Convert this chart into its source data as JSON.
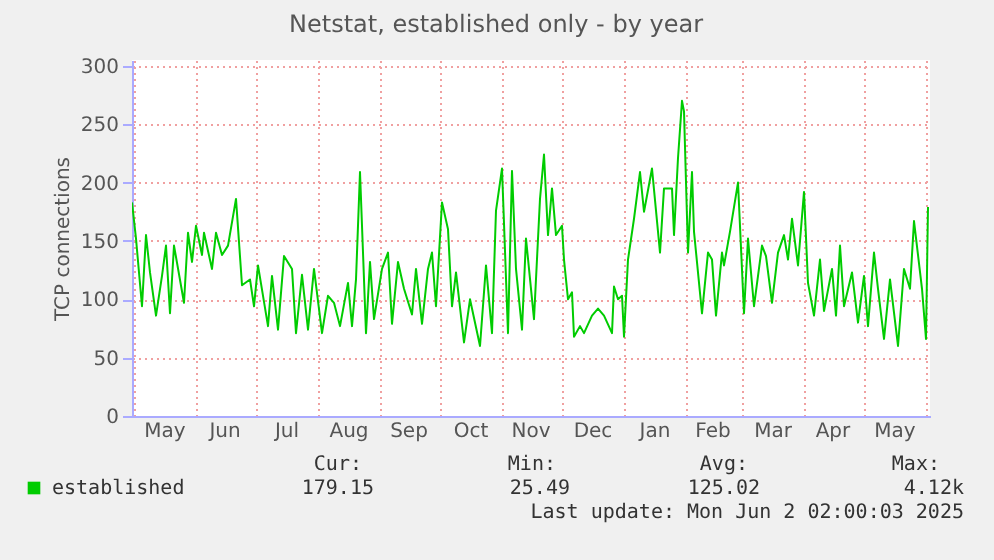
{
  "chart_data": {
    "type": "line",
    "title": "Netstat, established only - by year",
    "ylabel": "TCP connections",
    "xlim": [
      "2024-04-30",
      "2025-06-03"
    ],
    "ylim": [
      0,
      305
    ],
    "yticks": [
      0,
      50,
      100,
      150,
      200,
      250,
      300
    ],
    "xticks": [
      {
        "value": "2024-05-01",
        "label": null
      },
      {
        "value": "2024-05-16",
        "label": "May"
      },
      {
        "value": "2024-06-01",
        "label": null
      },
      {
        "value": "2024-06-15",
        "label": "Jun"
      },
      {
        "value": "2024-07-01",
        "label": null
      },
      {
        "value": "2024-07-16",
        "label": "Jul"
      },
      {
        "value": "2024-08-01",
        "label": null
      },
      {
        "value": "2024-08-16",
        "label": "Aug"
      },
      {
        "value": "2024-09-01",
        "label": null
      },
      {
        "value": "2024-09-15",
        "label": "Sep"
      },
      {
        "value": "2024-10-01",
        "label": null
      },
      {
        "value": "2024-10-16",
        "label": "Oct"
      },
      {
        "value": "2024-11-01",
        "label": null
      },
      {
        "value": "2024-11-15",
        "label": "Nov"
      },
      {
        "value": "2024-12-01",
        "label": null
      },
      {
        "value": "2024-12-16",
        "label": "Dec"
      },
      {
        "value": "2025-01-01",
        "label": null
      },
      {
        "value": "2025-01-16",
        "label": "Jan"
      },
      {
        "value": "2025-02-01",
        "label": null
      },
      {
        "value": "2025-02-14",
        "label": "Feb"
      },
      {
        "value": "2025-03-01",
        "label": null
      },
      {
        "value": "2025-03-16",
        "label": "Mar"
      },
      {
        "value": "2025-04-01",
        "label": null
      },
      {
        "value": "2025-04-15",
        "label": "Apr"
      },
      {
        "value": "2025-05-01",
        "label": null
      },
      {
        "value": "2025-05-16",
        "label": "May"
      },
      {
        "value": "2025-06-01",
        "label": null
      }
    ],
    "grid": true,
    "legend": "bottom",
    "marker": "none",
    "line_style": "solid",
    "x": [
      "2024-04-30",
      "2024-05-02",
      "2024-05-05",
      "2024-05-07",
      "2024-05-09",
      "2024-05-12",
      "2024-05-15",
      "2024-05-17",
      "2024-05-19",
      "2024-05-21",
      "2024-05-26",
      "2024-05-28",
      "2024-05-30",
      "2024-06-01",
      "2024-06-04",
      "2024-06-05",
      "2024-06-09",
      "2024-06-11",
      "2024-06-14",
      "2024-06-17",
      "2024-06-21",
      "2024-06-24",
      "2024-06-28",
      "2024-06-30",
      "2024-07-02",
      "2024-07-07",
      "2024-07-09",
      "2024-07-12",
      "2024-07-15",
      "2024-07-19",
      "2024-07-21",
      "2024-07-24",
      "2024-07-27",
      "2024-07-30",
      "2024-08-03",
      "2024-08-06",
      "2024-08-09",
      "2024-08-12",
      "2024-08-16",
      "2024-08-18",
      "2024-08-20",
      "2024-08-22",
      "2024-08-25",
      "2024-08-27",
      "2024-08-29",
      "2024-09-02",
      "2024-09-05",
      "2024-09-07",
      "2024-09-10",
      "2024-09-13",
      "2024-09-17",
      "2024-09-19",
      "2024-09-22",
      "2024-09-25",
      "2024-09-27",
      "2024-09-29",
      "2024-10-02",
      "2024-10-05",
      "2024-10-07",
      "2024-10-09",
      "2024-10-13",
      "2024-10-16",
      "2024-10-21",
      "2024-10-24",
      "2024-10-27",
      "2024-10-29",
      "2024-11-01",
      "2024-11-04",
      "2024-11-06",
      "2024-11-08",
      "2024-11-11",
      "2024-11-13",
      "2024-11-17",
      "2024-11-20",
      "2024-11-22",
      "2024-11-24",
      "2024-11-26",
      "2024-11-28",
      "2024-12-01",
      "2024-12-02",
      "2024-12-04",
      "2024-12-06",
      "2024-12-07",
      "2024-12-10",
      "2024-12-12",
      "2024-12-16",
      "2024-12-19",
      "2024-12-22",
      "2024-12-26",
      "2024-12-27",
      "2024-12-29",
      "2024-12-31",
      "2025-01-01",
      "2025-01-03",
      "2025-01-06",
      "2025-01-09",
      "2025-01-11",
      "2025-01-15",
      "2025-01-19",
      "2025-01-21",
      "2025-01-25",
      "2025-01-26",
      "2025-01-28",
      "2025-01-30",
      "2025-01-31",
      "2025-02-02",
      "2025-02-04",
      "2025-02-05",
      "2025-02-09",
      "2025-02-12",
      "2025-02-14",
      "2025-02-16",
      "2025-02-19",
      "2025-02-20",
      "2025-02-23",
      "2025-02-27",
      "2025-03-02",
      "2025-03-04",
      "2025-03-07",
      "2025-03-11",
      "2025-03-13",
      "2025-03-16",
      "2025-03-19",
      "2025-03-22",
      "2025-03-24",
      "2025-03-26",
      "2025-03-29",
      "2025-04-01",
      "2025-04-03",
      "2025-04-06",
      "2025-04-09",
      "2025-04-11",
      "2025-04-15",
      "2025-04-17",
      "2025-04-19",
      "2025-04-21",
      "2025-04-25",
      "2025-04-28",
      "2025-05-01",
      "2025-05-03",
      "2025-05-06",
      "2025-05-08",
      "2025-05-11",
      "2025-05-14",
      "2025-05-18",
      "2025-05-21",
      "2025-05-24",
      "2025-05-26",
      "2025-05-30",
      "2025-06-01",
      "2025-06-02"
    ],
    "series": [
      {
        "name": "established",
        "color": "#00cc00",
        "values": [
          183,
          152,
          94,
          155,
          123,
          86,
          120,
          146,
          88,
          146,
          97,
          157,
          132,
          163,
          138,
          157,
          126,
          157,
          138,
          146,
          186,
          112,
          117,
          94,
          129,
          77,
          120,
          74,
          137,
          126,
          71,
          121,
          74,
          126,
          71,
          103,
          97,
          77,
          114,
          77,
          117,
          209,
          71,
          132,
          83,
          126,
          140,
          79,
          132,
          109,
          87,
          126,
          79,
          126,
          140,
          94,
          183,
          160,
          94,
          123,
          63,
          100,
          60,
          129,
          71,
          176,
          212,
          71,
          210,
          126,
          74,
          152,
          83,
          186,
          224,
          155,
          195,
          155,
          163,
          134,
          100,
          106,
          68,
          77,
          71,
          86,
          92,
          86,
          71,
          111,
          100,
          103,
          68,
          134,
          169,
          209,
          175,
          212,
          140,
          195,
          195,
          155,
          221,
          270,
          261,
          140,
          209,
          158,
          88,
          140,
          134,
          86,
          140,
          129,
          158,
          200,
          88,
          152,
          94,
          146,
          137,
          97,
          140,
          155,
          134,
          169,
          129,
          192,
          114,
          86,
          134,
          90,
          126,
          86,
          146,
          94,
          123,
          80,
          120,
          77,
          140,
          109,
          66,
          117,
          60,
          126,
          109,
          167,
          109,
          66,
          179
        ]
      }
    ],
    "annotations": [
      "Cur:",
      "Min:",
      "Avg:",
      "Max:",
      "179.15",
      "25.49",
      "125.02",
      "4.12k",
      "Last update: Mon Jun  2 02:00:03 2025"
    ]
  }
}
